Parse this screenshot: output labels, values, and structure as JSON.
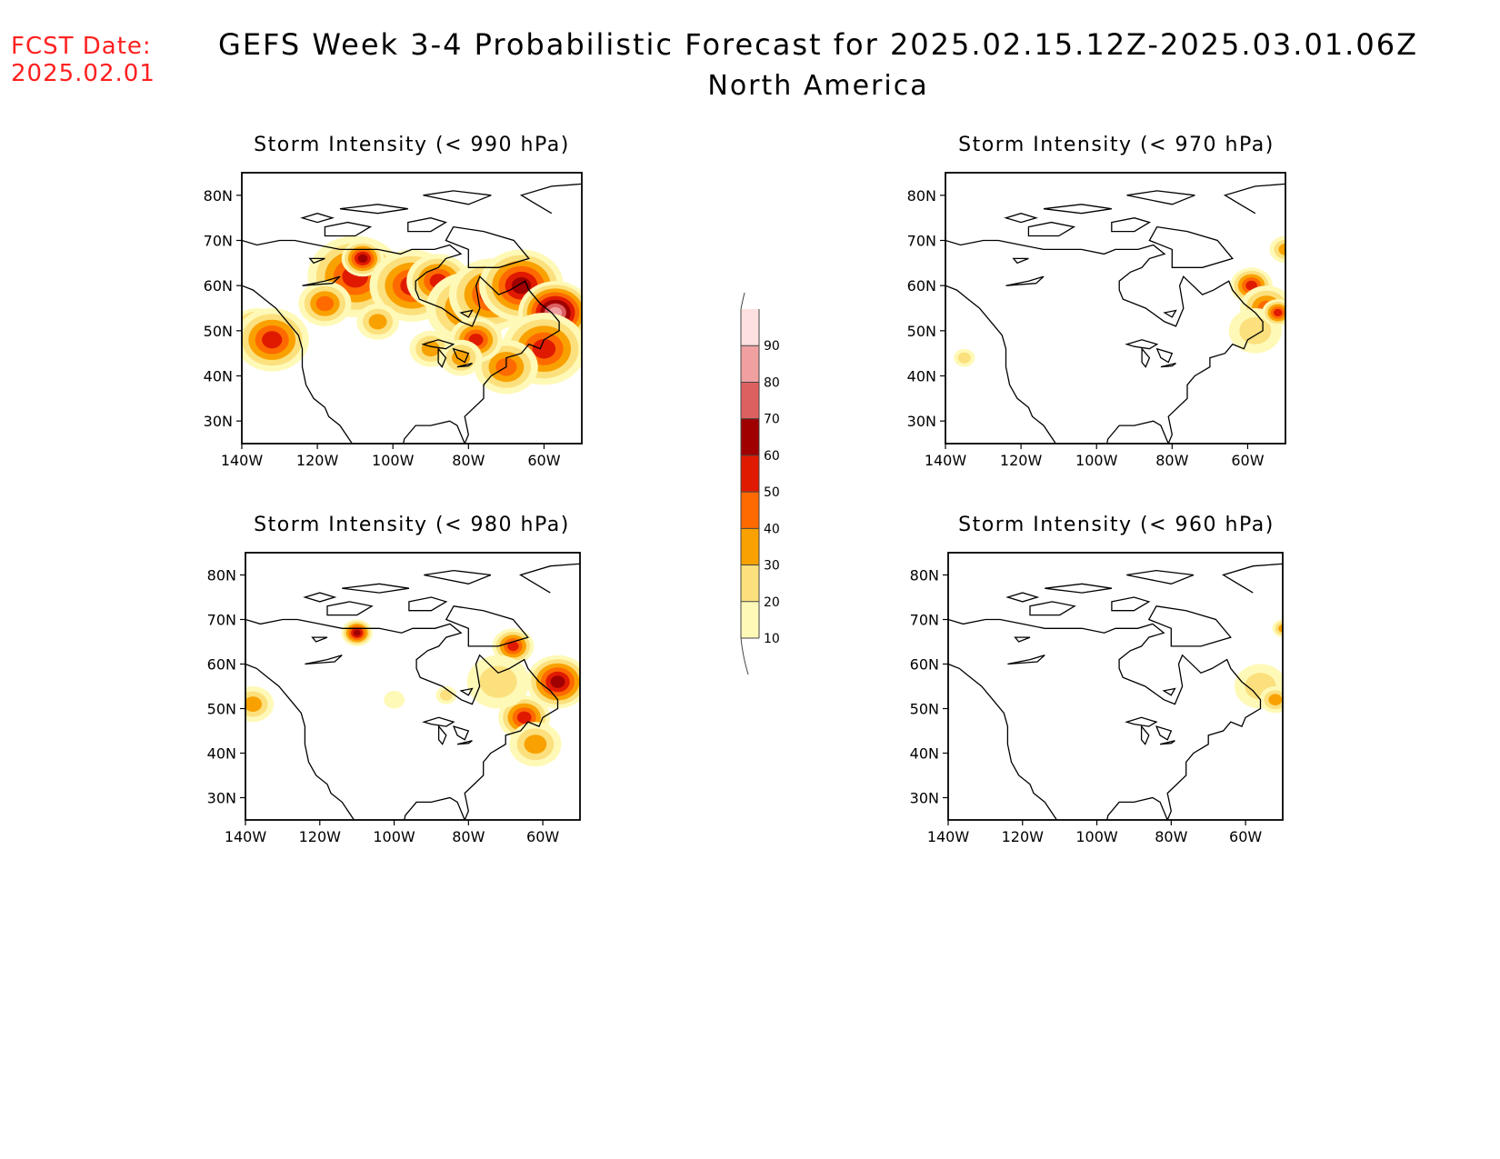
{
  "header": {
    "fcst_label": "FCST Date:",
    "fcst_date": "2025.02.01",
    "title": "GEFS Week 3-4 Probabilistic Forecast for 2025.02.15.12Z-2025.03.01.06Z",
    "subtitle": "North America"
  },
  "axes": {
    "lon_ticks": [
      "140W",
      "120W",
      "100W",
      "80W",
      "60W"
    ],
    "lat_ticks": [
      "30N",
      "40N",
      "50N",
      "60N",
      "70N",
      "80N"
    ],
    "lon_range": [
      -140,
      -50
    ],
    "lat_range": [
      25,
      85
    ]
  },
  "panels": [
    {
      "id": "p990",
      "title": "Storm Intensity (< 990 hPa)",
      "threshold_hpa": 990,
      "blobs": [
        {
          "lon": -136,
          "lat": 50,
          "level": 6,
          "r": 5
        },
        {
          "lon": -132,
          "lat": 48,
          "level": 5,
          "r": 7
        },
        {
          "lon": -110,
          "lat": 62,
          "level": 5,
          "r": 9
        },
        {
          "lon": -108,
          "lat": 66,
          "level": 6,
          "r": 4
        },
        {
          "lon": -98,
          "lat": 60,
          "level": 7,
          "r": 5
        },
        {
          "lon": -95,
          "lat": 60,
          "level": 5,
          "r": 8
        },
        {
          "lon": -88,
          "lat": 61,
          "level": 5,
          "r": 6
        },
        {
          "lon": -80,
          "lat": 55,
          "level": 4,
          "r": 8
        },
        {
          "lon": -74,
          "lat": 58,
          "level": 5,
          "r": 8
        },
        {
          "lon": -66,
          "lat": 60,
          "level": 6,
          "r": 8
        },
        {
          "lon": -57,
          "lat": 54,
          "level": 8,
          "r": 7
        },
        {
          "lon": -60,
          "lat": 46,
          "level": 5,
          "r": 8
        },
        {
          "lon": -70,
          "lat": 42,
          "level": 4,
          "r": 6
        },
        {
          "lon": -118,
          "lat": 56,
          "level": 4,
          "r": 5
        },
        {
          "lon": -90,
          "lat": 46,
          "level": 3,
          "r": 4
        },
        {
          "lon": -104,
          "lat": 52,
          "level": 3,
          "r": 4
        },
        {
          "lon": -78,
          "lat": 48,
          "level": 5,
          "r": 5
        },
        {
          "lon": -82,
          "lat": 44,
          "level": 3,
          "r": 4
        }
      ]
    },
    {
      "id": "p970",
      "title": "Storm Intensity (< 970 hPa)",
      "threshold_hpa": 970,
      "blobs": [
        {
          "lon": -59,
          "lat": 60,
          "level": 5,
          "r": 4
        },
        {
          "lon": -55,
          "lat": 55,
          "level": 4,
          "r": 5
        },
        {
          "lon": -58,
          "lat": 50,
          "level": 2,
          "r": 5
        },
        {
          "lon": -52,
          "lat": 54,
          "level": 5,
          "r": 3
        },
        {
          "lon": -50,
          "lat": 68,
          "level": 3,
          "r": 3
        },
        {
          "lon": -135,
          "lat": 44,
          "level": 2,
          "r": 2
        }
      ]
    },
    {
      "id": "p980",
      "title": "Storm Intensity (< 980 hPa)",
      "threshold_hpa": 980,
      "blobs": [
        {
          "lon": -138,
          "lat": 51,
          "level": 3,
          "r": 4
        },
        {
          "lon": -110,
          "lat": 67,
          "level": 6,
          "r": 3
        },
        {
          "lon": -68,
          "lat": 64,
          "level": 5,
          "r": 4
        },
        {
          "lon": -56,
          "lat": 56,
          "level": 6,
          "r": 6
        },
        {
          "lon": -65,
          "lat": 48,
          "level": 5,
          "r": 5
        },
        {
          "lon": -72,
          "lat": 56,
          "level": 2,
          "r": 6
        },
        {
          "lon": -62,
          "lat": 42,
          "level": 3,
          "r": 5
        },
        {
          "lon": -100,
          "lat": 52,
          "level": 1,
          "r": 2
        },
        {
          "lon": -86,
          "lat": 53,
          "level": 2,
          "r": 2
        }
      ]
    },
    {
      "id": "p960",
      "title": "Storm Intensity (< 960 hPa)",
      "threshold_hpa": 960,
      "blobs": [
        {
          "lon": -56,
          "lat": 55,
          "level": 2,
          "r": 5
        },
        {
          "lon": -52,
          "lat": 52,
          "level": 3,
          "r": 3
        },
        {
          "lon": -50,
          "lat": 68,
          "level": 3,
          "r": 2
        }
      ]
    }
  ],
  "colorbar": {
    "labels": [
      "10",
      "20",
      "30",
      "40",
      "50",
      "60",
      "70",
      "80",
      "90"
    ],
    "colors": [
      "#fff9b8",
      "#fbe07d",
      "#f9a100",
      "#ff6a00",
      "#e01a00",
      "#a00000",
      "#dd6060",
      "#f0a0a0",
      "#ffe0e0"
    ]
  },
  "colors": {
    "coast": "#000000"
  }
}
